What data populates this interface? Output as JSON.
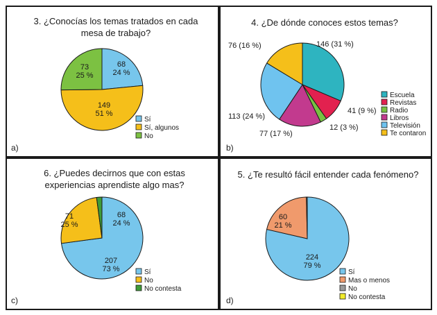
{
  "chart_data": [
    {
      "type": "pie",
      "panel_label": "a)",
      "title": "3. ¿Conocías los temas tratados en cada mesa de trabajo?",
      "slices": [
        {
          "name": "Sí",
          "value": 68,
          "label": [
            "68",
            "24 %"
          ],
          "color": "#77c6ec"
        },
        {
          "name": "Sí, algunos",
          "value": 149,
          "label": [
            "149",
            "51 %"
          ],
          "color": "#f5bf1a"
        },
        {
          "name": "No",
          "value": 73,
          "label": [
            "73",
            "25 %"
          ],
          "color": "#7cc142"
        }
      ]
    },
    {
      "type": "pie",
      "panel_label": "b)",
      "title": "4. ¿De dónde conoces estos temas?",
      "slices": [
        {
          "name": "Escuela",
          "value": 146,
          "label": [
            "146 (31 %)"
          ],
          "color": "#2eb4c0"
        },
        {
          "name": "Revistas",
          "value": 41,
          "label": [
            "41 (9 %)"
          ],
          "color": "#e2214f"
        },
        {
          "name": "Radio",
          "value": 12,
          "label": [
            "12 (3 %)"
          ],
          "color": "#78c142"
        },
        {
          "name": "Libros",
          "value": 77,
          "label": [
            "77 (17 %)"
          ],
          "color": "#c23a8e"
        },
        {
          "name": "Televisión",
          "value": 113,
          "label": [
            "113 (24 %)"
          ],
          "color": "#6fc3ef"
        },
        {
          "name": "Te contaron",
          "value": 76,
          "label": [
            "76 (16 %)"
          ],
          "color": "#f5bf1a"
        }
      ]
    },
    {
      "type": "pie",
      "panel_label": "c)",
      "title": "6. ¿Puedes decirnos que con estas experiencias aprendiste algo mas?",
      "slices": [
        {
          "name": "Sí",
          "value": 207,
          "label": [
            "207",
            "73 %"
          ],
          "color": "#77c6ec"
        },
        {
          "name": "No",
          "value": 71,
          "label": [
            "71",
            "25 %"
          ],
          "color": "#f5bf1a"
        },
        {
          "name": "No contesta",
          "value": 6,
          "label": [],
          "color": "#3f9c38"
        }
      ],
      "extra_labels": [
        [
          "68",
          "24 %"
        ]
      ]
    },
    {
      "type": "pie",
      "panel_label": "d)",
      "title": "5. ¿Te resultó fácil entender cada fenómeno?",
      "slices": [
        {
          "name": "Sí",
          "value": 224,
          "label": [
            "224",
            "79 %"
          ],
          "color": "#77c6ec"
        },
        {
          "name": "Mas o menos",
          "value": 60,
          "label": [
            "60",
            "21 %"
          ],
          "color": "#f09a6c"
        },
        {
          "name": "No",
          "value": 1,
          "label": [],
          "color": "#999999"
        },
        {
          "name": "No contesta",
          "value": 0,
          "label": [],
          "color": "#f2ec2a"
        }
      ]
    }
  ]
}
